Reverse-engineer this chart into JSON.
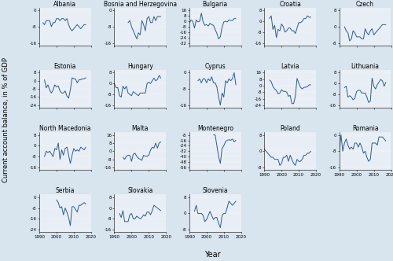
{
  "countries": [
    "Albania",
    "Bosnia and Herzegovina",
    "Bulgaria",
    "Croatia",
    "Czech",
    "Estonia",
    "Hungary",
    "Cyprus",
    "Latvia",
    "Lithuania",
    "North Macedonia",
    "Malta",
    "Montenegro",
    "Poland",
    "Romania",
    "Serbia",
    "Slovakia",
    "Slovenia"
  ],
  "grid_rows": 4,
  "grid_cols": 5,
  "line_color": "#2E5B8A",
  "line_width": 0.7,
  "bg_color": "#D8E4EE",
  "panel_bg_color": "#E8EEF5",
  "title_fontsize": 5.5,
  "tick_fontsize": 4.0,
  "ylabel": "Current account balance, in % of GDP",
  "xlabel": "Year",
  "ylabel_fontsize": 6.0,
  "xlabel_fontsize": 7.0,
  "data": {
    "Albania": {
      "years": [
        1992,
        1993,
        1994,
        1995,
        1996,
        1997,
        1998,
        1999,
        2000,
        2001,
        2002,
        2003,
        2004,
        2005,
        2006,
        2007,
        2008,
        2009,
        2010,
        2011,
        2012,
        2013,
        2014,
        2015,
        2016,
        2017
      ],
      "values": [
        -6,
        -7,
        -5,
        -5,
        -5,
        -8,
        -6,
        -6,
        -4,
        -4,
        -5,
        -4,
        -4,
        -5,
        -4,
        -7,
        -9,
        -10,
        -9,
        -8,
        -7,
        -8,
        -9,
        -8,
        -7,
        -7
      ]
    },
    "Bosnia and Herzegovina": {
      "years": [
        1998,
        1999,
        2000,
        2001,
        2002,
        2003,
        2004,
        2005,
        2006,
        2007,
        2008,
        2009,
        2010,
        2011,
        2012,
        2013,
        2014,
        2015,
        2016,
        2017
      ],
      "values": [
        -6,
        -5,
        -8,
        -10,
        -12,
        -14,
        -11,
        -12,
        -5,
        -7,
        -10,
        -4,
        -3,
        -6,
        -6,
        -3,
        -5,
        -3,
        -3,
        -3
      ]
    },
    "Bulgaria": {
      "years": [
        1990,
        1991,
        1992,
        1993,
        1994,
        1995,
        1996,
        1997,
        1998,
        1999,
        2000,
        2001,
        2002,
        2003,
        2004,
        2005,
        2006,
        2007,
        2008,
        2009,
        2010,
        2011,
        2012,
        2013,
        2014,
        2015,
        2016,
        2017
      ],
      "values": [
        -3,
        2,
        0,
        -10,
        2,
        -1,
        0,
        12,
        -1,
        -6,
        -5,
        -7,
        -3,
        -5,
        -6,
        -12,
        -18,
        -26,
        -23,
        -9,
        -1,
        0,
        -1,
        2,
        1,
        1,
        4,
        4
      ]
    },
    "Croatia": {
      "years": [
        1993,
        1994,
        1995,
        1996,
        1997,
        1998,
        1999,
        2000,
        2001,
        2002,
        2003,
        2004,
        2005,
        2006,
        2007,
        2008,
        2009,
        2010,
        2011,
        2012,
        2013,
        2014,
        2015,
        2016,
        2017
      ],
      "values": [
        2,
        4,
        -6,
        -3,
        -12,
        -6,
        -7,
        -2,
        -4,
        -8,
        -7,
        -5,
        -5,
        -7,
        -7,
        -9,
        -5,
        -1,
        -1,
        0,
        2,
        2,
        4,
        3,
        3
      ]
    },
    "Czech": {
      "years": [
        1993,
        1994,
        1995,
        1996,
        1997,
        1998,
        1999,
        2000,
        2001,
        2002,
        2003,
        2004,
        2005,
        2006,
        2007,
        2008,
        2009,
        2010,
        2011,
        2012,
        2013,
        2014,
        2015,
        2016,
        2017
      ],
      "values": [
        0,
        -2,
        -3,
        -7,
        -6,
        -2,
        -3,
        -5,
        -5,
        -5,
        -6,
        -6,
        -1,
        -3,
        -4,
        -2,
        -1,
        -4,
        -3,
        -2,
        -1,
        0,
        1,
        1,
        1
      ]
    },
    "Estonia": {
      "years": [
        1993,
        1994,
        1995,
        1996,
        1997,
        1998,
        1999,
        2000,
        2001,
        2002,
        2003,
        2004,
        2005,
        2006,
        2007,
        2008,
        2009,
        2010,
        2011,
        2012,
        2013,
        2014,
        2015,
        2016,
        2017
      ],
      "values": [
        1,
        -7,
        -4,
        -9,
        -12,
        -9,
        -4,
        -6,
        -5,
        -10,
        -12,
        -12,
        -10,
        -15,
        -17,
        -9,
        3,
        2,
        2,
        -2,
        1,
        1,
        2,
        2,
        3
      ]
    },
    "Hungary": {
      "years": [
        1990,
        1991,
        1992,
        1993,
        1994,
        1995,
        1996,
        1997,
        1998,
        1999,
        2000,
        2001,
        2002,
        2003,
        2004,
        2005,
        2006,
        2007,
        2008,
        2009,
        2010,
        2011,
        2012,
        2013,
        2014,
        2015,
        2016,
        2017
      ],
      "values": [
        0,
        -3,
        -3,
        -9,
        -10,
        -2,
        -4,
        -2,
        -7,
        -8,
        -9,
        -6,
        -7,
        -8,
        -9,
        -7,
        -7,
        -7,
        -7,
        0,
        1,
        0,
        2,
        4,
        2,
        3,
        6,
        4
      ]
    },
    "Cyprus": {
      "years": [
        1995,
        1996,
        1997,
        1998,
        1999,
        2000,
        2001,
        2002,
        2003,
        2004,
        2005,
        2006,
        2007,
        2008,
        2009,
        2010,
        2011,
        2012,
        2013,
        2014,
        2015,
        2016,
        2017
      ],
      "values": [
        -4,
        -3,
        -5,
        -3,
        -3,
        -5,
        -3,
        -4,
        -2,
        -5,
        -5,
        -7,
        -12,
        -16,
        -10,
        -12,
        -4,
        -5,
        -3,
        -4,
        -3,
        0,
        -6
      ]
    },
    "Latvia": {
      "years": [
        1993,
        1994,
        1995,
        1996,
        1997,
        1998,
        1999,
        2000,
        2001,
        2002,
        2003,
        2004,
        2005,
        2006,
        2007,
        2008,
        2009,
        2010,
        2011,
        2012,
        2013,
        2014,
        2015,
        2016,
        2017
      ],
      "values": [
        7,
        5,
        -1,
        -4,
        -6,
        -10,
        -9,
        -5,
        -7,
        -7,
        -8,
        -13,
        -12,
        -22,
        -22,
        -13,
        9,
        3,
        -2,
        -4,
        -2,
        -2,
        -1,
        1,
        1
      ]
    },
    "Lithuania": {
      "years": [
        1993,
        1994,
        1995,
        1996,
        1997,
        1998,
        1999,
        2000,
        2001,
        2002,
        2003,
        2004,
        2005,
        2006,
        2007,
        2008,
        2009,
        2010,
        2011,
        2012,
        2013,
        2014,
        2015,
        2016,
        2017
      ],
      "values": [
        -3,
        -2,
        -10,
        -9,
        -10,
        -12,
        -11,
        -6,
        -5,
        -5,
        -7,
        -7,
        -7,
        -10,
        -14,
        -13,
        4,
        -2,
        -4,
        -1,
        1,
        3,
        2,
        -2,
        1
      ]
    },
    "North Macedonia": {
      "years": [
        1993,
        1994,
        1995,
        1996,
        1997,
        1998,
        1999,
        2000,
        2001,
        2002,
        2003,
        2004,
        2005,
        2006,
        2007,
        2008,
        2009,
        2010,
        2011,
        2012,
        2013,
        2014,
        2015,
        2016,
        2017
      ],
      "values": [
        -8,
        -4,
        -5,
        -4,
        -6,
        -8,
        -2,
        -3,
        2,
        -10,
        -3,
        -7,
        -2,
        -1,
        -7,
        -13,
        -7,
        -2,
        -4,
        -3,
        -4,
        -1,
        -2,
        -3,
        -1
      ]
    },
    "Malta": {
      "years": [
        1995,
        1996,
        1997,
        1998,
        1999,
        2000,
        2001,
        2002,
        2003,
        2004,
        2005,
        2006,
        2007,
        2008,
        2009,
        2010,
        2011,
        2012,
        2013,
        2014,
        2015,
        2016,
        2017
      ],
      "values": [
        -6,
        -8,
        -5,
        -4,
        -4,
        -10,
        -3,
        -2,
        -5,
        -7,
        -8,
        -9,
        -4,
        -5,
        -5,
        -4,
        1,
        4,
        3,
        8,
        3,
        8,
        9
      ]
    },
    "Montenegro": {
      "years": [
        2004,
        2005,
        2006,
        2007,
        2008,
        2009,
        2010,
        2011,
        2012,
        2013,
        2014,
        2015,
        2016,
        2017
      ],
      "values": [
        -8,
        -8,
        -24,
        -40,
        -50,
        -28,
        -24,
        -18,
        -16,
        -15,
        -16,
        -14,
        -18,
        -16
      ]
    },
    "Poland": {
      "years": [
        1990,
        1991,
        1992,
        1993,
        1994,
        1995,
        1996,
        1997,
        1998,
        1999,
        2000,
        2001,
        2002,
        2003,
        2004,
        2005,
        2006,
        2007,
        2008,
        2009,
        2010,
        2011,
        2012,
        2013,
        2014,
        2015,
        2016,
        2017
      ],
      "values": [
        1,
        0,
        -1,
        -2,
        -3,
        -3,
        -4,
        -4,
        -4,
        -7,
        -6,
        -3,
        -3,
        -2,
        -5,
        -2,
        -4,
        -6,
        -7,
        -4,
        -5,
        -5,
        -4,
        -2,
        -2,
        -1,
        -1,
        0
      ]
    },
    "Romania": {
      "years": [
        1990,
        1991,
        1992,
        1993,
        1994,
        1995,
        1996,
        1997,
        1998,
        1999,
        2000,
        2001,
        2002,
        2003,
        2004,
        2005,
        2006,
        2007,
        2008,
        2009,
        2010,
        2011,
        2012,
        2013,
        2014,
        2015,
        2016,
        2017
      ],
      "values": [
        -8,
        0,
        -8,
        -4,
        -2,
        -5,
        -7,
        -6,
        -7,
        -4,
        -4,
        -6,
        -4,
        -6,
        -9,
        -8,
        -11,
        -13,
        -12,
        -4,
        -4,
        -4,
        -5,
        -1,
        -1,
        -1,
        -2,
        -3
      ]
    },
    "Serbia": {
      "years": [
        2000,
        2001,
        2002,
        2003,
        2004,
        2005,
        2006,
        2007,
        2008,
        2009,
        2010,
        2011,
        2012,
        2013,
        2014,
        2015,
        2016,
        2017
      ],
      "values": [
        -2,
        -4,
        -8,
        -7,
        -13,
        -8,
        -11,
        -15,
        -21,
        -7,
        -7,
        -9,
        -11,
        -6,
        -6,
        -5,
        -4,
        -5
      ]
    },
    "Slovakia": {
      "years": [
        1993,
        1994,
        1995,
        1996,
        1997,
        1998,
        1999,
        2000,
        2001,
        2002,
        2003,
        2004,
        2005,
        2006,
        2007,
        2008,
        2009,
        2010,
        2011,
        2012,
        2013,
        2014,
        2015,
        2016,
        2017
      ],
      "values": [
        -4,
        -7,
        -2,
        -10,
        -10,
        -10,
        -5,
        -4,
        -8,
        -8,
        -6,
        -7,
        -8,
        -7,
        -5,
        -6,
        -3,
        -3,
        -5,
        -2,
        2,
        1,
        0,
        -1,
        -2
      ]
    },
    "Slovenia": {
      "years": [
        1993,
        1994,
        1995,
        1996,
        1997,
        1998,
        1999,
        2000,
        2001,
        2002,
        2003,
        2004,
        2005,
        2006,
        2007,
        2008,
        2009,
        2010,
        2011,
        2012,
        2013,
        2014,
        2015,
        2016,
        2017
      ],
      "values": [
        1,
        4,
        0,
        0,
        0,
        -1,
        -4,
        -3,
        -1,
        1,
        -1,
        -3,
        -2,
        -2,
        -5,
        -7,
        -1,
        0,
        0,
        3,
        6,
        5,
        4,
        5,
        6
      ]
    }
  },
  "country_order": [
    [
      "Albania",
      "Bosnia and Herzegovina",
      "Bulgaria",
      "Croatia",
      "Czech"
    ],
    [
      "Estonia",
      "Hungary",
      "Cyprus",
      "Latvia",
      "Lithuania"
    ],
    [
      "North Macedonia",
      "Malta",
      "Montenegro",
      "Poland",
      "Romania"
    ],
    [
      "Serbia",
      "Slovakia",
      "Slovenia",
      null,
      null
    ]
  ]
}
